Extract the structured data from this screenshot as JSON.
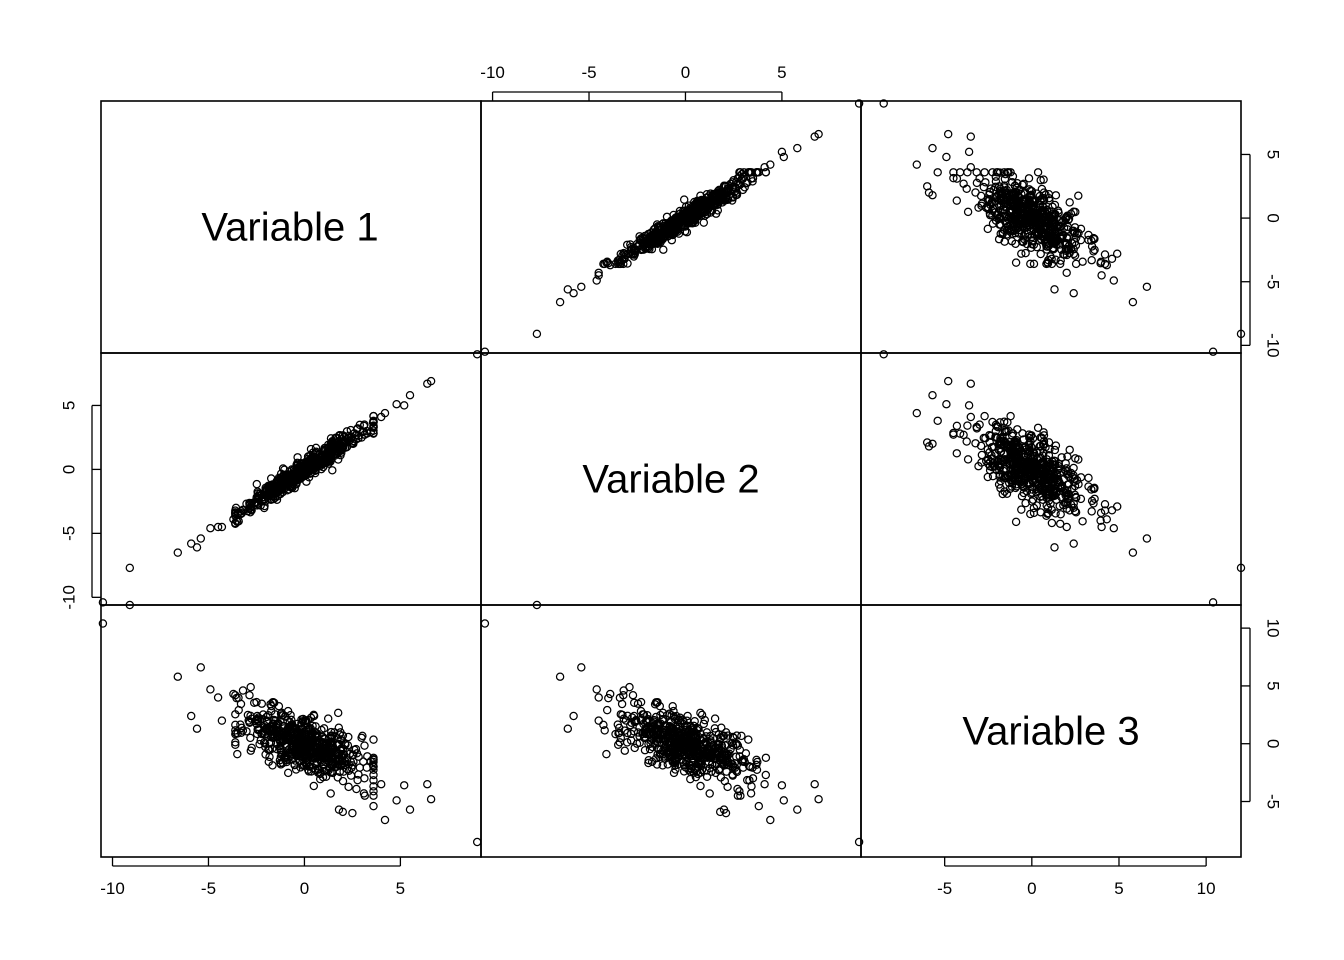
{
  "chart_data": {
    "type": "scatter",
    "layout": "pairs-matrix",
    "variables": [
      "Variable 1",
      "Variable 2",
      "Variable 3"
    ],
    "ranges": {
      "Variable 1": [
        -10.6,
        9.2
      ],
      "Variable 2": [
        -10.6,
        9.1
      ],
      "Variable 3": [
        -9.8,
        12.0
      ]
    },
    "axis_ticks": {
      "top": {
        "variable": "Variable 2",
        "values": [
          -10,
          -5,
          0,
          5
        ],
        "labels": [
          "-10",
          "-5",
          "0",
          "5"
        ]
      },
      "bottom": {
        "variable": "Variable 1",
        "values": [
          -10,
          -5,
          0,
          5
        ],
        "labels": [
          "-10",
          "-5",
          "0",
          "5"
        ]
      },
      "bottom_right": {
        "variable": "Variable 3",
        "values": [
          -5,
          0,
          5,
          10
        ],
        "labels": [
          "-5",
          "0",
          "5",
          "10"
        ]
      },
      "left": {
        "variable": "Variable 2",
        "values": [
          -10,
          -5,
          0,
          5
        ],
        "labels": [
          "-10",
          "-5",
          "0",
          "5"
        ]
      },
      "right_top": {
        "variable": "Variable 1",
        "values": [
          -10,
          -5,
          0,
          5
        ],
        "labels": [
          "-10",
          "-5",
          "0",
          "5"
        ]
      },
      "right_bottom": {
        "variable": "Variable 3",
        "values": [
          -5,
          0,
          5,
          10
        ],
        "labels": [
          "-5",
          "0",
          "5",
          "10"
        ]
      }
    },
    "grid": false,
    "marker": "open-circle",
    "observations": [
      {
        "v1": -10.5,
        "v2": -10.4,
        "v3": 10.4
      },
      {
        "v1": -9.1,
        "v2": -7.7,
        "v3": 12.0
      },
      {
        "v1": 9.0,
        "v2": 9.0,
        "v3": -8.5
      },
      {
        "v1": -6.6,
        "v2": -6.5,
        "v3": 5.8
      },
      {
        "v1": -5.9,
        "v2": -5.8,
        "v3": 2.4
      },
      {
        "v1": -5.6,
        "v2": -6.1,
        "v3": 1.3
      },
      {
        "v1": -5.4,
        "v2": -5.4,
        "v3": 6.6
      },
      {
        "v1": -4.9,
        "v2": -4.6,
        "v3": 4.7
      },
      {
        "v1": -4.5,
        "v2": -4.5,
        "v3": 4.0
      },
      {
        "v1": -4.3,
        "v2": -4.5,
        "v3": 2.0
      },
      {
        "v1": -3.7,
        "v2": -3.9,
        "v3": 4.3
      },
      {
        "v1": -3.5,
        "v2": -4.1,
        "v3": -0.9
      },
      {
        "v1": -3.2,
        "v2": -3.2,
        "v3": 4.6
      },
      {
        "v1": -2.8,
        "v2": -2.9,
        "v3": 4.9
      },
      {
        "v1": -2.5,
        "v2": -2.3,
        "v3": 3.6
      },
      {
        "v1": 6.4,
        "v2": 6.7,
        "v3": -3.5
      },
      {
        "v1": 6.6,
        "v2": 6.9,
        "v3": -4.8
      },
      {
        "v1": 5.2,
        "v2": 5.0,
        "v3": -3.6
      },
      {
        "v1": 5.5,
        "v2": 5.8,
        "v3": -5.7
      },
      {
        "v1": 4.8,
        "v2": 5.1,
        "v3": -4.9
      },
      {
        "v1": 4.2,
        "v2": 4.4,
        "v3": -6.6
      },
      {
        "v1": 4.0,
        "v2": 4.1,
        "v3": -3.5
      },
      {
        "v1": 3.6,
        "v2": 3.8,
        "v3": -5.4
      },
      {
        "v1": 3.1,
        "v2": 3.4,
        "v3": -4.3
      },
      {
        "v1": 2.0,
        "v2": 1.8,
        "v3": -5.9
      },
      {
        "v1": 1.8,
        "v2": 2.0,
        "v3": -5.7
      },
      {
        "v1": 2.5,
        "v2": 2.1,
        "v3": -6.0
      }
    ],
    "bulk_cloud": {
      "n": 600,
      "v1_sd": 1.55,
      "v2_given_v1_slope": 1.0,
      "v2_noise_sd": 0.42,
      "v3_given_v1_slope": -0.6,
      "v3_noise_sd": 1.15
    }
  }
}
